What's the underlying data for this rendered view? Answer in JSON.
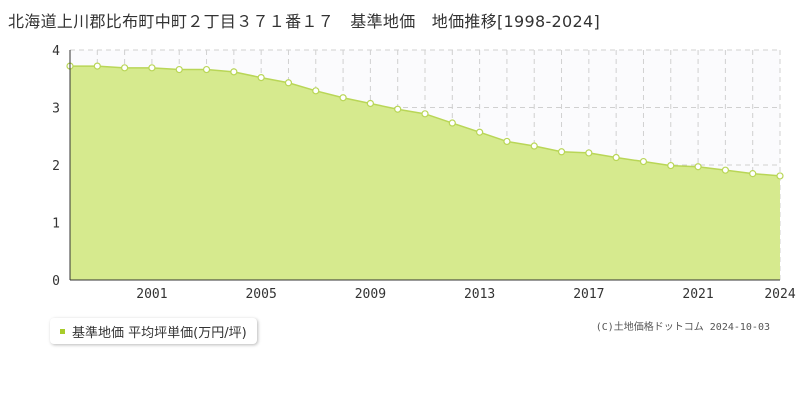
{
  "chart_data": {
    "type": "area",
    "title": "北海道上川郡比布町中町２丁目３７１番１７　基準地価　地価推移[1998-2024]",
    "xlabel": "",
    "ylabel": "",
    "x": [
      1998,
      1999,
      2000,
      2001,
      2002,
      2003,
      2004,
      2005,
      2006,
      2007,
      2008,
      2009,
      2010,
      2011,
      2012,
      2013,
      2014,
      2015,
      2016,
      2017,
      2018,
      2019,
      2020,
      2021,
      2022,
      2023,
      2024
    ],
    "series": [
      {
        "name": "基準地価 平均坪単価(万円/坪)",
        "values": [
          3.72,
          3.72,
          3.69,
          3.69,
          3.66,
          3.66,
          3.62,
          3.52,
          3.43,
          3.29,
          3.17,
          3.07,
          2.97,
          2.89,
          2.73,
          2.57,
          2.41,
          2.33,
          2.23,
          2.21,
          2.13,
          2.06,
          1.99,
          1.97,
          1.91,
          1.85,
          1.81
        ]
      }
    ],
    "xlim": [
      1998,
      2024
    ],
    "ylim": [
      0,
      4
    ],
    "x_tick_labels": [
      "2001",
      "2005",
      "2009",
      "2013",
      "2017",
      "2021",
      "2024"
    ],
    "y_tick_labels": [
      "0",
      "1",
      "2",
      "3",
      "4"
    ],
    "grid": true,
    "legend_position": "bottom-left",
    "colors": {
      "fill": "#d6ea8e",
      "line": "#b9d657",
      "marker_fill": "#ffffff",
      "marker_stroke": "#b9d657",
      "legend_swatch": "#a8cc2a",
      "grid": "#d0d0d0",
      "axis": "#333333",
      "plot_background": "#fbfbfd"
    }
  },
  "credit": "(C)土地価格ドットコム 2024-10-03"
}
